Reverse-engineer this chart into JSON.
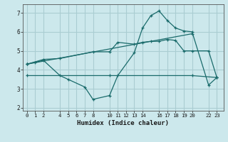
{
  "xlabel": "Humidex (Indice chaleur)",
  "background_color": "#cce8ec",
  "grid_color": "#aacdd2",
  "line_color": "#1a6b6b",
  "xlim": [
    -0.5,
    23.8
  ],
  "ylim": [
    1.85,
    7.45
  ],
  "yticks": [
    2,
    3,
    4,
    5,
    6,
    7
  ],
  "xticks": [
    0,
    1,
    2,
    4,
    5,
    6,
    7,
    8,
    10,
    11,
    12,
    13,
    14,
    16,
    17,
    18,
    19,
    20,
    22,
    23
  ],
  "series": [
    {
      "x": [
        0,
        1,
        2,
        4,
        5,
        7,
        8,
        10,
        11,
        13,
        14,
        15,
        16,
        17,
        18,
        19,
        20,
        22,
        23
      ],
      "y": [
        4.3,
        4.4,
        4.5,
        3.7,
        3.5,
        3.1,
        2.45,
        2.65,
        3.7,
        4.9,
        6.2,
        6.85,
        7.1,
        6.6,
        6.2,
        6.05,
        6.0,
        3.2,
        3.6
      ]
    },
    {
      "x": [
        0,
        2,
        4,
        8,
        10,
        11,
        13,
        14,
        15,
        16,
        17,
        18,
        19,
        20,
        22,
        23
      ],
      "y": [
        4.3,
        4.55,
        4.6,
        4.95,
        4.95,
        5.45,
        5.35,
        5.45,
        5.5,
        5.5,
        5.6,
        5.55,
        5.0,
        5.0,
        5.0,
        3.6
      ]
    },
    {
      "x": [
        0,
        10,
        20,
        23
      ],
      "y": [
        3.7,
        3.7,
        3.7,
        3.6
      ]
    },
    {
      "x": [
        0,
        20
      ],
      "y": [
        4.3,
        5.9
      ]
    }
  ]
}
